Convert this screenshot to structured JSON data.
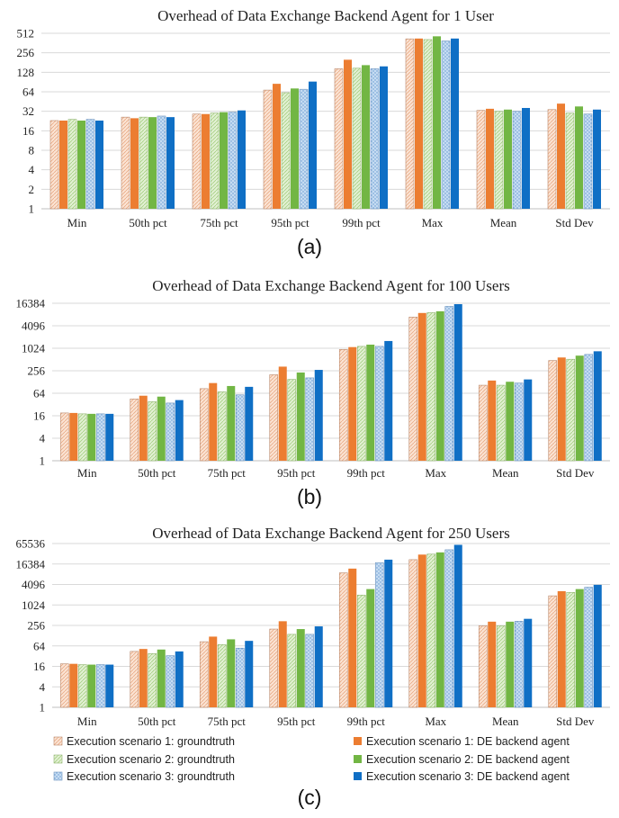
{
  "legend": [
    "Execution scenario 1: groundtruth",
    "Execution scenario 1: DE backend agent",
    "Execution scenario 2: groundtruth",
    "Execution scenario 2: DE backend agent",
    "Execution scenario 3: groundtruth",
    "Execution scenario 3: DE backend agent"
  ],
  "series_colors": [
    "#f4c9ae",
    "#ec7d31",
    "#c5e0a5",
    "#72b644",
    "#9dc3e6",
    "#0f6fc5"
  ],
  "chart_data": [
    {
      "type": "bar",
      "title": "Overhead of Data Exchange Backend Agent for 1 User",
      "sublabel": "(a)",
      "yscale": "log2",
      "ylim": [
        1,
        512
      ],
      "yticks": [
        "1",
        "2",
        "4",
        "8",
        "16",
        "32",
        "64",
        "128",
        "256",
        "512"
      ],
      "grid": true,
      "categories": [
        "Min",
        "50th pct",
        "75th pct",
        "95th pct",
        "99th pct",
        "Max",
        "Mean",
        "Std Dev"
      ],
      "series": [
        {
          "name": "Execution scenario 1: groundtruth",
          "values": [
            23,
            26,
            29,
            68,
            145,
            420,
            33,
            34
          ]
        },
        {
          "name": "Execution scenario 1: DE backend agent",
          "values": [
            23,
            25,
            29,
            85,
            200,
            425,
            35,
            42
          ]
        },
        {
          "name": "Execution scenario 2: groundtruth",
          "values": [
            24,
            26,
            30,
            62,
            148,
            410,
            32,
            30
          ]
        },
        {
          "name": "Execution scenario 2: DE backend agent",
          "values": [
            23,
            26,
            31,
            72,
            165,
            460,
            34,
            38
          ]
        },
        {
          "name": "Execution scenario 3: groundtruth",
          "values": [
            24,
            27,
            31,
            70,
            145,
            390,
            32,
            29
          ]
        },
        {
          "name": "Execution scenario 3: DE backend agent",
          "values": [
            23,
            26,
            33,
            92,
            158,
            425,
            36,
            34
          ]
        }
      ]
    },
    {
      "type": "bar",
      "title": "Overhead of Data Exchange Backend Agent for 100 Users",
      "sublabel": "(b)",
      "yscale": "log2",
      "ylim": [
        1,
        16384
      ],
      "yticks": [
        "1",
        "4",
        "16",
        "64",
        "256",
        "1024",
        "4096",
        "16384"
      ],
      "grid": true,
      "categories": [
        "Min",
        "50th pct",
        "75th pct",
        "95th pct",
        "99th pct",
        "Max",
        "Mean",
        "Std Dev"
      ],
      "series": [
        {
          "name": "Execution scenario 1: groundtruth",
          "values": [
            19,
            45,
            85,
            200,
            950,
            7000,
            105,
            480
          ]
        },
        {
          "name": "Execution scenario 1: DE backend agent",
          "values": [
            19,
            55,
            120,
            330,
            1100,
            9000,
            140,
            580
          ]
        },
        {
          "name": "Execution scenario 2: groundtruth",
          "values": [
            18,
            38,
            70,
            150,
            1150,
            9200,
            105,
            520
          ]
        },
        {
          "name": "Execution scenario 2: DE backend agent",
          "values": [
            18,
            52,
            100,
            230,
            1280,
            10000,
            130,
            650
          ]
        },
        {
          "name": "Execution scenario 3: groundtruth",
          "values": [
            18,
            35,
            58,
            165,
            1150,
            13500,
            120,
            700
          ]
        },
        {
          "name": "Execution scenario 3: DE backend agent",
          "values": [
            18,
            42,
            95,
            270,
            1600,
            15500,
            150,
            850
          ]
        }
      ]
    },
    {
      "type": "bar",
      "title": "Overhead of Data Exchange Backend Agent for 250 Users",
      "sublabel": "(c)",
      "yscale": "log2",
      "ylim": [
        1,
        65536
      ],
      "yticks": [
        "1",
        "4",
        "16",
        "64",
        "256",
        "1024",
        "4096",
        "16384",
        "65536"
      ],
      "grid": true,
      "categories": [
        "Min",
        "50th pct",
        "75th pct",
        "95th pct",
        "99th pct",
        "Max",
        "Mean",
        "Std Dev"
      ],
      "series": [
        {
          "name": "Execution scenario 1: groundtruth",
          "values": [
            19,
            44,
            85,
            200,
            9000,
            22000,
            250,
            1900
          ]
        },
        {
          "name": "Execution scenario 1: DE backend agent",
          "values": [
            19,
            52,
            120,
            340,
            12000,
            31000,
            330,
            2600
          ]
        },
        {
          "name": "Execution scenario 2: groundtruth",
          "values": [
            18,
            38,
            70,
            140,
            2000,
            32000,
            250,
            2400
          ]
        },
        {
          "name": "Execution scenario 2: DE backend agent",
          "values": [
            18,
            50,
            100,
            200,
            3000,
            36000,
            330,
            3000
          ]
        },
        {
          "name": "Execution scenario 3: groundtruth",
          "values": [
            18,
            33,
            55,
            140,
            18000,
            43000,
            340,
            3400
          ]
        },
        {
          "name": "Execution scenario 3: DE backend agent",
          "values": [
            18,
            44,
            90,
            240,
            22000,
            60000,
            400,
            4000
          ]
        }
      ]
    }
  ]
}
